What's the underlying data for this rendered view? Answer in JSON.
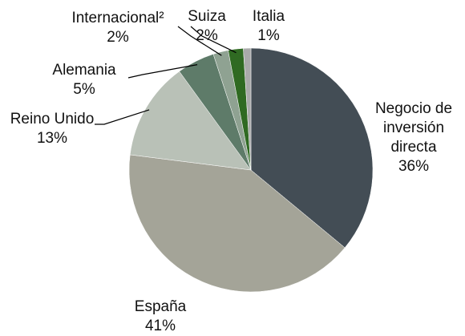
{
  "chart_data": {
    "type": "pie",
    "categories": [
      "Negocio de inversión directa",
      "España",
      "Reino Unido",
      "Alemania",
      "Internacional²",
      "Suiza",
      "Italia"
    ],
    "values": [
      36,
      41,
      13,
      5,
      2,
      2,
      1
    ],
    "value_labels": [
      "36%",
      "41%",
      "13%",
      "5%",
      "2%",
      "2%",
      "1%"
    ],
    "colors": [
      "#434d55",
      "#a4a498",
      "#b9c1b7",
      "#5e7b69",
      "#8fa292",
      "#2f6a22",
      "#a9aaaa"
    ]
  }
}
